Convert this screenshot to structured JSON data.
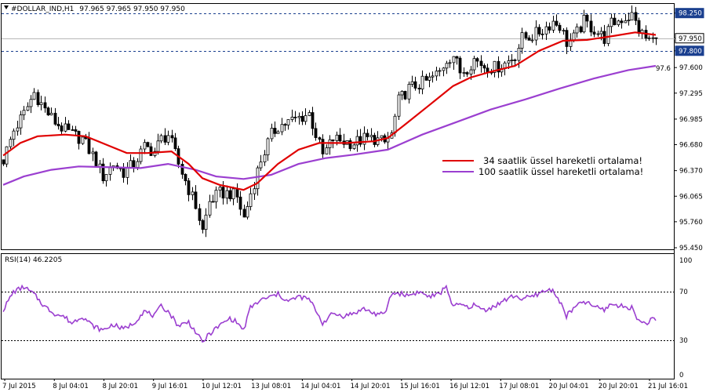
{
  "header": {
    "symbol": "#DOLLAR_IND,H1",
    "ohlc": "97.965 97.965 97.950 97.950"
  },
  "chart_data": [
    {
      "type": "candlestick",
      "grid": false,
      "legend_position": "right-center",
      "y_ticks": [
        "98.250",
        "97.950",
        "97.800",
        "97.600",
        "97.295",
        "96.985",
        "96.680",
        "96.370",
        "96.065",
        "95.760",
        "95.450"
      ],
      "ylim": [
        95.45,
        98.35
      ],
      "x_ticks": [
        "7 Jul 2015",
        "8 Jul 04:01",
        "8 Jul 20:01",
        "9 Jul 16:01",
        "10 Jul 12:01",
        "13 Jul 08:01",
        "14 Jul 04:01",
        "14 Jul 20:01",
        "15 Jul 16:01",
        "16 Jul 12:01",
        "17 Jul 08:01",
        "20 Jul 04:01",
        "20 Jul 20:01",
        "21 Jul 16:01"
      ],
      "last_price": 97.95,
      "level_tags": [
        {
          "value": 98.25,
          "label": "98.250",
          "color": "#1a3f8f"
        },
        {
          "value": 97.8,
          "label": "97.800",
          "color": "#1a3f8f"
        },
        {
          "value": 97.95,
          "label": "97.950",
          "color": "#000000"
        }
      ],
      "ma_end_label": "97.6",
      "legend": [
        {
          "label": "34 saatlik üssel hareketli ortalama!",
          "color": "#e00000"
        },
        {
          "label": "100 saatlik üssel hareketli ortalama!",
          "color": "#9b3fd0"
        }
      ],
      "price_path": [
        {
          "x": 0,
          "y": 96.5
        },
        {
          "x": 3,
          "y": 96.85
        },
        {
          "x": 6,
          "y": 97.05
        },
        {
          "x": 9,
          "y": 97.3
        },
        {
          "x": 12,
          "y": 97.1
        },
        {
          "x": 15,
          "y": 96.95
        },
        {
          "x": 18,
          "y": 96.85
        },
        {
          "x": 20,
          "y": 96.8
        },
        {
          "x": 23,
          "y": 96.75
        },
        {
          "x": 26,
          "y": 96.55
        },
        {
          "x": 29,
          "y": 96.3
        },
        {
          "x": 32,
          "y": 96.45
        },
        {
          "x": 35,
          "y": 96.35
        },
        {
          "x": 38,
          "y": 96.45
        },
        {
          "x": 41,
          "y": 96.65
        },
        {
          "x": 44,
          "y": 96.6
        },
        {
          "x": 46,
          "y": 96.75
        },
        {
          "x": 48,
          "y": 96.8
        },
        {
          "x": 51,
          "y": 96.45
        },
        {
          "x": 54,
          "y": 96.15
        },
        {
          "x": 56,
          "y": 95.95
        },
        {
          "x": 58,
          "y": 95.65
        },
        {
          "x": 60,
          "y": 96.0
        },
        {
          "x": 63,
          "y": 96.1
        },
        {
          "x": 66,
          "y": 96.1
        },
        {
          "x": 68,
          "y": 96.05
        },
        {
          "x": 70,
          "y": 95.8
        },
        {
          "x": 72,
          "y": 96.1
        },
        {
          "x": 75,
          "y": 96.5
        },
        {
          "x": 78,
          "y": 96.8
        },
        {
          "x": 80,
          "y": 96.9
        },
        {
          "x": 83,
          "y": 96.95
        },
        {
          "x": 86,
          "y": 97.0
        },
        {
          "x": 89,
          "y": 97.05
        },
        {
          "x": 91,
          "y": 96.8
        },
        {
          "x": 93,
          "y": 96.55
        },
        {
          "x": 96,
          "y": 96.75
        },
        {
          "x": 99,
          "y": 96.72
        },
        {
          "x": 102,
          "y": 96.7
        },
        {
          "x": 105,
          "y": 96.75
        },
        {
          "x": 108,
          "y": 96.75
        },
        {
          "x": 111,
          "y": 96.7
        },
        {
          "x": 113,
          "y": 96.8
        },
        {
          "x": 115,
          "y": 97.2
        },
        {
          "x": 118,
          "y": 97.35
        },
        {
          "x": 121,
          "y": 97.4
        },
        {
          "x": 124,
          "y": 97.45
        },
        {
          "x": 127,
          "y": 97.55
        },
        {
          "x": 129,
          "y": 97.7
        },
        {
          "x": 131,
          "y": 97.75
        },
        {
          "x": 133,
          "y": 97.55
        },
        {
          "x": 135,
          "y": 97.6
        },
        {
          "x": 137,
          "y": 97.7
        },
        {
          "x": 140,
          "y": 97.62
        },
        {
          "x": 143,
          "y": 97.6
        },
        {
          "x": 146,
          "y": 97.65
        },
        {
          "x": 149,
          "y": 97.75
        },
        {
          "x": 151,
          "y": 97.95
        },
        {
          "x": 154,
          "y": 97.98
        },
        {
          "x": 157,
          "y": 98.05
        },
        {
          "x": 160,
          "y": 98.15
        },
        {
          "x": 162,
          "y": 98.1
        },
        {
          "x": 164,
          "y": 97.9
        },
        {
          "x": 166,
          "y": 97.95
        },
        {
          "x": 169,
          "y": 98.15
        },
        {
          "x": 172,
          "y": 98.05
        },
        {
          "x": 175,
          "y": 97.95
        },
        {
          "x": 177,
          "y": 98.12
        },
        {
          "x": 180,
          "y": 98.18
        },
        {
          "x": 183,
          "y": 98.22
        },
        {
          "x": 185,
          "y": 98.05
        },
        {
          "x": 187,
          "y": 97.95
        },
        {
          "x": 189,
          "y": 97.92
        },
        {
          "x": 190,
          "y": 97.95
        }
      ],
      "ema34": [
        {
          "x": 0,
          "y": 96.55
        },
        {
          "x": 5,
          "y": 96.7
        },
        {
          "x": 10,
          "y": 96.78
        },
        {
          "x": 18,
          "y": 96.8
        },
        {
          "x": 24,
          "y": 96.78
        },
        {
          "x": 30,
          "y": 96.68
        },
        {
          "x": 36,
          "y": 96.58
        },
        {
          "x": 42,
          "y": 96.58
        },
        {
          "x": 49,
          "y": 96.6
        },
        {
          "x": 54,
          "y": 96.45
        },
        {
          "x": 58,
          "y": 96.28
        },
        {
          "x": 63,
          "y": 96.2
        },
        {
          "x": 70,
          "y": 96.14
        },
        {
          "x": 74,
          "y": 96.22
        },
        {
          "x": 80,
          "y": 96.45
        },
        {
          "x": 86,
          "y": 96.62
        },
        {
          "x": 92,
          "y": 96.7
        },
        {
          "x": 100,
          "y": 96.7
        },
        {
          "x": 108,
          "y": 96.72
        },
        {
          "x": 112,
          "y": 96.76
        },
        {
          "x": 117,
          "y": 96.92
        },
        {
          "x": 124,
          "y": 97.15
        },
        {
          "x": 131,
          "y": 97.38
        },
        {
          "x": 136,
          "y": 97.48
        },
        {
          "x": 142,
          "y": 97.55
        },
        {
          "x": 149,
          "y": 97.62
        },
        {
          "x": 156,
          "y": 97.8
        },
        {
          "x": 163,
          "y": 97.92
        },
        {
          "x": 170,
          "y": 97.93
        },
        {
          "x": 178,
          "y": 97.98
        },
        {
          "x": 184,
          "y": 98.02
        },
        {
          "x": 190,
          "y": 97.99
        }
      ],
      "ema100": [
        {
          "x": 0,
          "y": 96.2
        },
        {
          "x": 6,
          "y": 96.3
        },
        {
          "x": 14,
          "y": 96.38
        },
        {
          "x": 22,
          "y": 96.42
        },
        {
          "x": 32,
          "y": 96.41
        },
        {
          "x": 40,
          "y": 96.4
        },
        {
          "x": 48,
          "y": 96.45
        },
        {
          "x": 56,
          "y": 96.38
        },
        {
          "x": 62,
          "y": 96.3
        },
        {
          "x": 70,
          "y": 96.27
        },
        {
          "x": 78,
          "y": 96.32
        },
        {
          "x": 86,
          "y": 96.45
        },
        {
          "x": 94,
          "y": 96.52
        },
        {
          "x": 102,
          "y": 96.56
        },
        {
          "x": 112,
          "y": 96.62
        },
        {
          "x": 122,
          "y": 96.8
        },
        {
          "x": 132,
          "y": 96.95
        },
        {
          "x": 142,
          "y": 97.1
        },
        {
          "x": 152,
          "y": 97.22
        },
        {
          "x": 162,
          "y": 97.35
        },
        {
          "x": 172,
          "y": 97.47
        },
        {
          "x": 182,
          "y": 97.57
        },
        {
          "x": 190,
          "y": 97.62
        }
      ]
    },
    {
      "type": "line",
      "title": "RSI(14) 46.2205",
      "grid": false,
      "ylim": [
        0,
        100
      ],
      "y_ticks": [
        "100",
        "70",
        "30",
        "0"
      ],
      "levels": [
        70,
        30
      ],
      "series": [
        {
          "color": "#9b3fd0",
          "points": [
            {
              "x": 0,
              "y": 55
            },
            {
              "x": 3,
              "y": 70
            },
            {
              "x": 6,
              "y": 74
            },
            {
              "x": 9,
              "y": 68
            },
            {
              "x": 12,
              "y": 58
            },
            {
              "x": 15,
              "y": 52
            },
            {
              "x": 18,
              "y": 49
            },
            {
              "x": 20,
              "y": 44
            },
            {
              "x": 23,
              "y": 50
            },
            {
              "x": 26,
              "y": 42
            },
            {
              "x": 29,
              "y": 38
            },
            {
              "x": 32,
              "y": 43
            },
            {
              "x": 35,
              "y": 39
            },
            {
              "x": 38,
              "y": 44
            },
            {
              "x": 41,
              "y": 54
            },
            {
              "x": 44,
              "y": 50
            },
            {
              "x": 46,
              "y": 58
            },
            {
              "x": 48,
              "y": 54
            },
            {
              "x": 51,
              "y": 42
            },
            {
              "x": 54,
              "y": 45
            },
            {
              "x": 56,
              "y": 37
            },
            {
              "x": 58,
              "y": 28
            },
            {
              "x": 60,
              "y": 35
            },
            {
              "x": 63,
              "y": 42
            },
            {
              "x": 66,
              "y": 48
            },
            {
              "x": 68,
              "y": 45
            },
            {
              "x": 70,
              "y": 38
            },
            {
              "x": 72,
              "y": 57
            },
            {
              "x": 75,
              "y": 63
            },
            {
              "x": 78,
              "y": 66
            },
            {
              "x": 80,
              "y": 68
            },
            {
              "x": 83,
              "y": 62
            },
            {
              "x": 86,
              "y": 66
            },
            {
              "x": 89,
              "y": 64
            },
            {
              "x": 91,
              "y": 55
            },
            {
              "x": 93,
              "y": 44
            },
            {
              "x": 96,
              "y": 52
            },
            {
              "x": 99,
              "y": 50
            },
            {
              "x": 102,
              "y": 52
            },
            {
              "x": 105,
              "y": 56
            },
            {
              "x": 108,
              "y": 52
            },
            {
              "x": 111,
              "y": 51
            },
            {
              "x": 113,
              "y": 68
            },
            {
              "x": 115,
              "y": 69
            },
            {
              "x": 118,
              "y": 67
            },
            {
              "x": 121,
              "y": 70
            },
            {
              "x": 124,
              "y": 66
            },
            {
              "x": 127,
              "y": 68
            },
            {
              "x": 129,
              "y": 75
            },
            {
              "x": 131,
              "y": 57
            },
            {
              "x": 133,
              "y": 60
            },
            {
              "x": 135,
              "y": 57
            },
            {
              "x": 137,
              "y": 59
            },
            {
              "x": 140,
              "y": 55
            },
            {
              "x": 143,
              "y": 58
            },
            {
              "x": 146,
              "y": 63
            },
            {
              "x": 149,
              "y": 67
            },
            {
              "x": 151,
              "y": 64
            },
            {
              "x": 154,
              "y": 66
            },
            {
              "x": 157,
              "y": 70
            },
            {
              "x": 160,
              "y": 72
            },
            {
              "x": 162,
              "y": 62
            },
            {
              "x": 164,
              "y": 50
            },
            {
              "x": 166,
              "y": 56
            },
            {
              "x": 169,
              "y": 62
            },
            {
              "x": 172,
              "y": 58
            },
            {
              "x": 175,
              "y": 55
            },
            {
              "x": 177,
              "y": 60
            },
            {
              "x": 180,
              "y": 58
            },
            {
              "x": 183,
              "y": 57
            },
            {
              "x": 185,
              "y": 46
            },
            {
              "x": 187,
              "y": 44
            },
            {
              "x": 189,
              "y": 47
            },
            {
              "x": 190,
              "y": 46
            }
          ]
        }
      ]
    }
  ]
}
